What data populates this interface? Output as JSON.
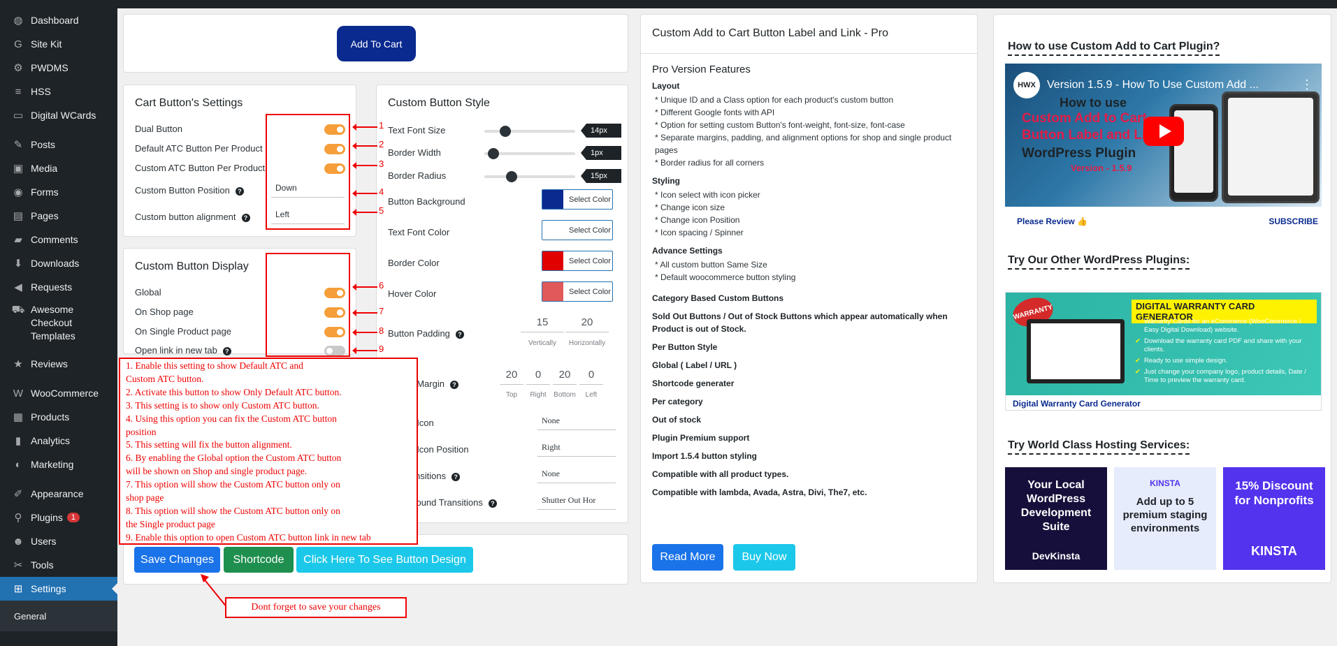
{
  "sidebar": {
    "items": [
      {
        "label": "Dashboard",
        "icon": "dashboard-icon",
        "glyph": "◍"
      },
      {
        "label": "Site Kit",
        "icon": "google-icon",
        "glyph": "G"
      },
      {
        "label": "PWDMS",
        "icon": "gear-icon",
        "glyph": "⚙"
      },
      {
        "label": "HSS",
        "icon": "hss-icon",
        "glyph": "≡"
      },
      {
        "label": "Digital WCards",
        "icon": "card-icon",
        "glyph": "▭"
      },
      {
        "label": "Posts",
        "icon": "pin-icon",
        "glyph": "✎"
      },
      {
        "label": "Media",
        "icon": "media-icon",
        "glyph": "▣"
      },
      {
        "label": "Forms",
        "icon": "forms-icon",
        "glyph": "◉"
      },
      {
        "label": "Pages",
        "icon": "pages-icon",
        "glyph": "▤"
      },
      {
        "label": "Comments",
        "icon": "comment-icon",
        "glyph": "▰"
      },
      {
        "label": "Downloads",
        "icon": "download-icon",
        "glyph": "⬇"
      },
      {
        "label": "Requests",
        "icon": "megaphone-icon",
        "glyph": "◀"
      },
      {
        "label": "Awesome Checkout Templates",
        "icon": "cart-icon",
        "glyph": "⛟"
      },
      {
        "label": "Reviews",
        "icon": "star-icon",
        "glyph": "★"
      },
      {
        "label": "WooCommerce",
        "icon": "woo-icon",
        "glyph": "W"
      },
      {
        "label": "Products",
        "icon": "archive-icon",
        "glyph": "▦"
      },
      {
        "label": "Analytics",
        "icon": "chart-icon",
        "glyph": "▮"
      },
      {
        "label": "Marketing",
        "icon": "marketing-icon",
        "glyph": "◐"
      },
      {
        "label": "Appearance",
        "icon": "brush-icon",
        "glyph": "✐"
      },
      {
        "label": "Plugins",
        "icon": "plugin-icon",
        "glyph": "⚲",
        "badge": "1"
      },
      {
        "label": "Users",
        "icon": "user-icon",
        "glyph": "☻"
      },
      {
        "label": "Tools",
        "icon": "wrench-icon",
        "glyph": "✂"
      },
      {
        "label": "Settings",
        "icon": "settings-icon",
        "glyph": "⊞"
      }
    ],
    "submenu": "General"
  },
  "preview": {
    "button_label": "Add To Cart",
    "color": "#0a2a8f"
  },
  "cart_settings": {
    "title": "Cart Button's Settings",
    "rows": [
      {
        "label": "Dual Button",
        "num": "1"
      },
      {
        "label": "Default ATC Button Per Product",
        "num": "2"
      },
      {
        "label": "Custom ATC Button Per Product",
        "num": "3"
      },
      {
        "label": "Custom Button Position",
        "value": "Down",
        "num": "4"
      },
      {
        "label": "Custom button alignment",
        "value": "Left",
        "num": "5"
      }
    ]
  },
  "display": {
    "title": "Custom Button Display",
    "rows": [
      {
        "label": "Global",
        "num": "6",
        "on": true
      },
      {
        "label": "On Shop page",
        "num": "7",
        "on": true
      },
      {
        "label": "On Single Product page",
        "num": "8",
        "on": true
      },
      {
        "label": "Open link in new tab",
        "num": "9",
        "on": false
      }
    ]
  },
  "notes": [
    "1. Enable this setting to show Default ATC and",
    "Custom ATC button.",
    "2. Activate this button to show Only Default ATC button.",
    "3. This setting is to show only Custom ATC button.",
    "4. Using this option you can fix the Custom ATC button",
    "position",
    "5. This setting will fix the button alignment.",
    "6. By enabling the Global option the Custom ATC button",
    "will be shown on Shop and single product page.",
    "7. This option will show the Custom ATC button only on",
    "shop page",
    "8. This option will show the Custom ATC button only on",
    "the Single product page",
    "9. Enable this option to open Custom ATC button link in new tab"
  ],
  "style": {
    "title": "Custom Button Style",
    "sliders": [
      {
        "label": "Text Font Size",
        "value": "14px",
        "level": 0.23
      },
      {
        "label": "Border Width",
        "value": "1px",
        "level": 0.1
      },
      {
        "label": "Border Radius",
        "value": "15px",
        "level": 0.3
      }
    ],
    "colors": [
      {
        "label": "Button Background",
        "color": "#0a2a8f",
        "btn": "Select Color"
      },
      {
        "label": "Text Font Color",
        "color": "#ffffff",
        "btn": "Select Color"
      },
      {
        "label": "Border Color",
        "color": "#e00000",
        "btn": "Select Color"
      },
      {
        "label": "Hover Color",
        "color": "#e05a5a",
        "btn": "Select Color"
      }
    ],
    "padding": {
      "label": "Button Padding",
      "vertical": "15",
      "horizontal": "20",
      "vlabel": "Vertically",
      "hlabel": "Horizontally"
    },
    "margin": {
      "label": "Button Margin",
      "top": "20",
      "right": "0",
      "bottom": "20",
      "left": "0",
      "tl": "Top",
      "rl": "Right",
      "bl": "Bottom",
      "ll": "Left"
    },
    "selects": [
      {
        "label": "Button Icon",
        "value": "None",
        "q": false
      },
      {
        "label": "Button Icon Position",
        "value": "Right",
        "q": false
      },
      {
        "label": "2D Transitions",
        "value": "None",
        "q": true
      },
      {
        "label": "Background Transitions",
        "value": "Shutter Out Hor",
        "q": true
      }
    ]
  },
  "actions": {
    "save": "Save Changes",
    "shortcode": "Shortcode",
    "design": "Click Here To See Button Design",
    "reminder": "Dont forget to save your changes"
  },
  "pro": {
    "title": "Custom Add to Cart Button Label and Link - Pro",
    "features_title": "Pro Version Features",
    "layout_title": "Layout",
    "layout": [
      "* Unique ID and a Class option for each product's custom button",
      "* Different Google fonts with API",
      "* Option for setting custom Button's font-weight, font-size, font-case",
      "* Separate margins, padding, and alignment options for shop and single product",
      "pages",
      "* Border radius for all corners"
    ],
    "styling_title": "Styling",
    "styling": [
      "* Icon select with icon picker",
      "* Change icon size",
      "* Change icon Position",
      "* Icon spacing / Spinner"
    ],
    "advance_title": "Advance Settings",
    "advance": [
      "* All custom button Same Size",
      "* Default woocommerce button styling"
    ],
    "extras": [
      "Category Based Custom Buttons",
      "Sold Out Buttons / Out of Stock Buttons which appear automatically when",
      "Product is out of Stock.",
      "Per Button Style",
      "Global ( Label / URL )",
      "Shortcode generater",
      "Per category",
      "Out of stock",
      "Plugin Premium support",
      "Import 1.5.4 button styling",
      "Compatible with all product types.",
      "Compatible with lambda, Avada, Astra, Divi, The7, etc."
    ],
    "read_more": "Read More",
    "buy_now": "Buy Now"
  },
  "right": {
    "video_heading": "How to use Custom Add to Cart Plugin?",
    "video_title": "Version 1.5.9 - How To Use Custom Add ...",
    "video_line1": "How to use",
    "video_line2": "Custom Add to Cart",
    "video_line3": "Button Label and Li",
    "video_line4": "WordPress Plugin",
    "video_line5": "Version - 1.5.9",
    "channel": "HWX",
    "review": "Please Review",
    "subscribe": "SUBSCRIBE",
    "plugins_heading": "Try Our Other WordPress Plugins:",
    "banner_title": "DIGITAL WARRANTY CARD GENERATOR",
    "banner_badge": "WARRANTY",
    "banner_points": [
      "Warranty Cards for an eCommerce (WooCommerce / Easy Digital Download) website.",
      "Download the warranty card PDF and share with your clients.",
      "Ready to use simple design.",
      "Just change your company logo, product details, Date / Time to preview the warranty card."
    ],
    "banner_link": "Digital Warranty Card Generator",
    "hosting_heading": "Try World Class Hosting Services:",
    "ad1": "Your Local WordPress Development Suite",
    "ad1_brand": "DevKinsta",
    "ad2_brand": "KINSTA",
    "ad2": "Add up to 5 premium staging environments",
    "ad3": "15% Discount for Nonprofits",
    "ad3_brand": "KINSTA"
  }
}
